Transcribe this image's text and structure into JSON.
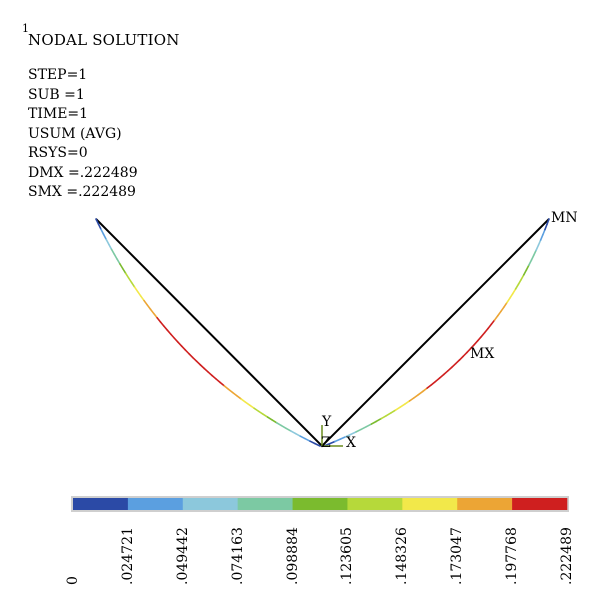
{
  "window_number": "1",
  "title": "NODAL SOLUTION",
  "info_lines": [
    "STEP=1",
    "SUB =1",
    "TIME=1",
    "USUM (AVG)",
    "RSYS=0",
    "DMX =.222489",
    "SMX =.222489"
  ],
  "labels": {
    "min": "MN",
    "max": "MX"
  },
  "triad": {
    "x": "X",
    "y": "Y",
    "z": "Z"
  },
  "legend": {
    "ticks": [
      "0",
      ".024721",
      ".049442",
      ".074163",
      ".098884",
      ".123605",
      ".148326",
      ".173047",
      ".197768",
      ".222489"
    ],
    "colors": [
      "#2b4aa6",
      "#5b9fe0",
      "#8cc8dc",
      "#7cc9a3",
      "#7bbb2e",
      "#b6d93a",
      "#f2e84a",
      "#eca535",
      "#cf1f1f"
    ]
  },
  "colors": {
    "undeformed": "#000000",
    "triad": "#6a8c1e"
  }
}
